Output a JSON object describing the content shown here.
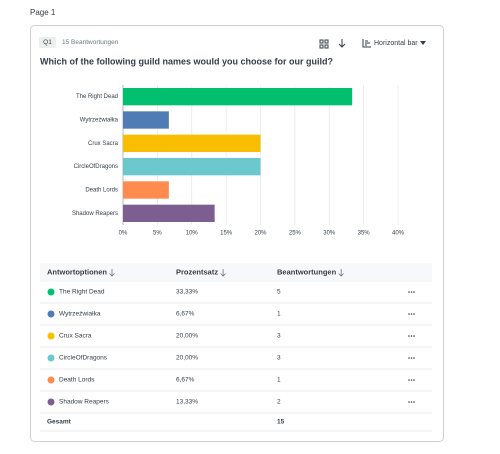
{
  "page_label": "Page 1",
  "question": {
    "number": "Q1",
    "responses": "15 Beantwortungen",
    "chart_type_menu": "Horizontal bar",
    "title": "Which of the following guild names would you choose for our guild?"
  },
  "chart_data": {
    "type": "bar",
    "orientation": "horizontal",
    "categories": [
      "The Right Dead",
      "Wytrzeźwiałka",
      "Crux Sacra",
      "CircleOfDragons",
      "Death Lords",
      "Shadow Reapers"
    ],
    "values": [
      33.33,
      6.67,
      20,
      20,
      6.67,
      13.33
    ],
    "colors": [
      "#00bf6f",
      "#507cb6",
      "#f9be00",
      "#6bc8cd",
      "#ff8b4f",
      "#7d5e90"
    ],
    "xlim": [
      0,
      40
    ],
    "xticks": [
      {
        "value": 0,
        "label": "0%"
      },
      {
        "value": 5,
        "label": "5%"
      },
      {
        "value": 10,
        "label": "10%"
      },
      {
        "value": 15,
        "label": "15%"
      },
      {
        "value": 20,
        "label": "20%"
      },
      {
        "value": 25,
        "label": "25%"
      },
      {
        "value": 30,
        "label": "30%"
      },
      {
        "value": 35,
        "label": "35%"
      },
      {
        "value": 40,
        "label": "40%"
      }
    ],
    "grid": true
  },
  "table": {
    "header": [
      "Antwortoptionen",
      "Prozentsatz",
      "Beantwortungen"
    ],
    "rows": [
      [
        "The Right Dead",
        "33,33%",
        5
      ],
      [
        "Wytrzeźwiałka",
        "6,67%",
        1
      ],
      [
        "Crux Sacra",
        "20,00%",
        3
      ],
      [
        "CircleOfDragons",
        "20,00%",
        3
      ],
      [
        "Death Lords",
        "6,67%",
        1
      ],
      [
        "Shadow Reapers",
        "13,33%",
        2
      ]
    ],
    "total_label": "Gesamt",
    "total": 15
  }
}
